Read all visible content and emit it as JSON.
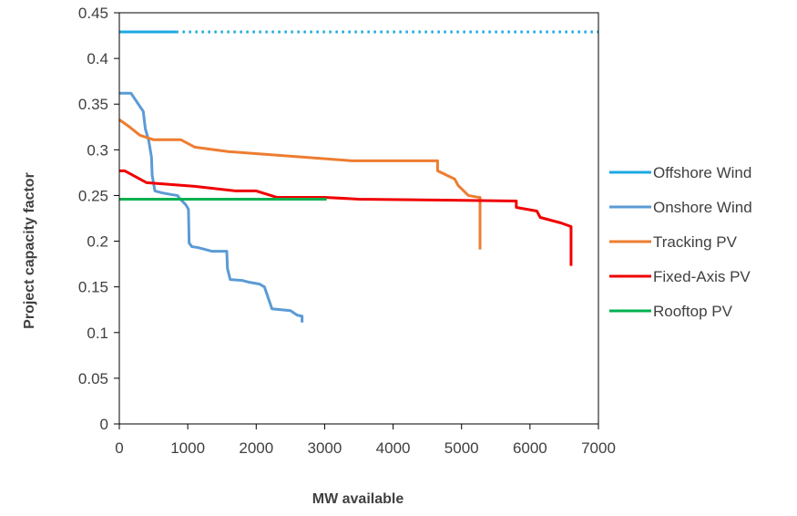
{
  "chart_data": {
    "type": "line",
    "xlabel": "MW available",
    "ylabel": "Project capacity factor",
    "xlim": [
      0,
      7000
    ],
    "ylim": [
      0,
      0.45
    ],
    "x_ticks": [
      "0",
      "1000",
      "2000",
      "3000",
      "4000",
      "5000",
      "6000",
      "7000"
    ],
    "y_ticks": [
      "0",
      "0.05",
      "0.1",
      "0.15",
      "0.2",
      "0.25",
      "0.3",
      "0.35",
      "0.4",
      "0.45"
    ],
    "grid": false,
    "legend_position": "right",
    "series": [
      {
        "name": "Offshore  Wind",
        "color": "#1BA9E0",
        "points": [
          [
            0,
            0.429
          ],
          [
            830,
            0.429
          ]
        ],
        "dotted_extension": [
          [
            830,
            0.429
          ],
          [
            7000,
            0.429
          ]
        ]
      },
      {
        "name": "Onshore  Wind",
        "color": "#5B9BD5",
        "points": [
          [
            0,
            0.362
          ],
          [
            170,
            0.362
          ],
          [
            350,
            0.342
          ],
          [
            380,
            0.323
          ],
          [
            430,
            0.31
          ],
          [
            470,
            0.292
          ],
          [
            480,
            0.272
          ],
          [
            520,
            0.255
          ],
          [
            620,
            0.253
          ],
          [
            760,
            0.251
          ],
          [
            850,
            0.25
          ],
          [
            890,
            0.246
          ],
          [
            970,
            0.24
          ],
          [
            1010,
            0.235
          ],
          [
            1020,
            0.198
          ],
          [
            1060,
            0.194
          ],
          [
            1150,
            0.193
          ],
          [
            1350,
            0.189
          ],
          [
            1570,
            0.189
          ],
          [
            1580,
            0.17
          ],
          [
            1620,
            0.158
          ],
          [
            1800,
            0.157
          ],
          [
            1900,
            0.155
          ],
          [
            2050,
            0.153
          ],
          [
            2120,
            0.15
          ],
          [
            2230,
            0.126
          ],
          [
            2500,
            0.124
          ],
          [
            2600,
            0.119
          ],
          [
            2670,
            0.118
          ],
          [
            2670,
            0.111
          ]
        ]
      },
      {
        "name": "Tracking PV",
        "color": "#ED7D31",
        "points": [
          [
            0,
            0.333
          ],
          [
            150,
            0.325
          ],
          [
            300,
            0.316
          ],
          [
            500,
            0.311
          ],
          [
            900,
            0.311
          ],
          [
            1100,
            0.303
          ],
          [
            1600,
            0.298
          ],
          [
            3400,
            0.288
          ],
          [
            4650,
            0.288
          ],
          [
            4650,
            0.277
          ],
          [
            4900,
            0.268
          ],
          [
            4950,
            0.261
          ],
          [
            5100,
            0.25
          ],
          [
            5250,
            0.248
          ],
          [
            5270,
            0.248
          ],
          [
            5270,
            0.191
          ]
        ]
      },
      {
        "name": "Fixed-Axis PV",
        "color": "#F00000",
        "points": [
          [
            0,
            0.277
          ],
          [
            80,
            0.277
          ],
          [
            400,
            0.264
          ],
          [
            1100,
            0.26
          ],
          [
            1700,
            0.255
          ],
          [
            2000,
            0.255
          ],
          [
            2300,
            0.248
          ],
          [
            3000,
            0.248
          ],
          [
            3500,
            0.246
          ],
          [
            5800,
            0.244
          ],
          [
            5800,
            0.237
          ],
          [
            6100,
            0.233
          ],
          [
            6150,
            0.226
          ],
          [
            6450,
            0.22
          ],
          [
            6600,
            0.216
          ],
          [
            6600,
            0.173
          ]
        ]
      },
      {
        "name": "Rooftop PV",
        "color": "#00B050",
        "points": [
          [
            0,
            0.246
          ],
          [
            3030,
            0.246
          ]
        ]
      }
    ]
  }
}
